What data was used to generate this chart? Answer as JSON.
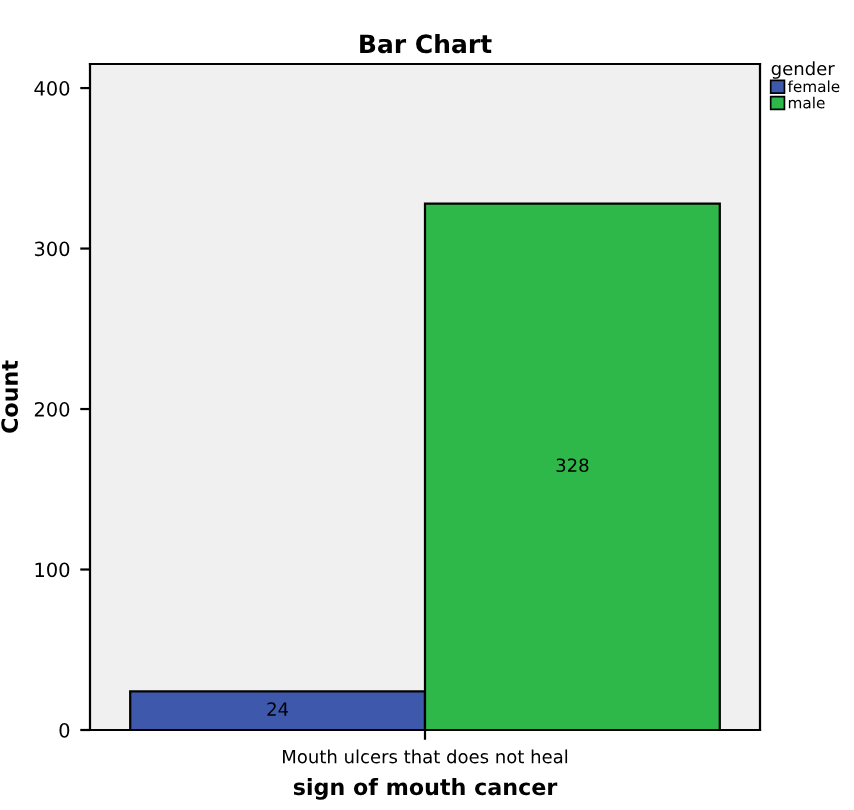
{
  "chart_data": {
    "type": "bar",
    "title": "Bar Chart",
    "xlabel": "sign of mouth cancer",
    "ylabel": "Count",
    "legend_title": "gender",
    "categories": [
      "Mouth ulcers that does not heal"
    ],
    "series": [
      {
        "name": "female",
        "color": "#3e58ac",
        "values": [
          24
        ]
      },
      {
        "name": "male",
        "color": "#2fb84a",
        "values": [
          328
        ]
      }
    ],
    "ylim": [
      0,
      415
    ],
    "yticks": [
      0,
      100,
      200,
      300,
      400
    ],
    "data_labels": true,
    "legend": "right",
    "grid": false
  }
}
